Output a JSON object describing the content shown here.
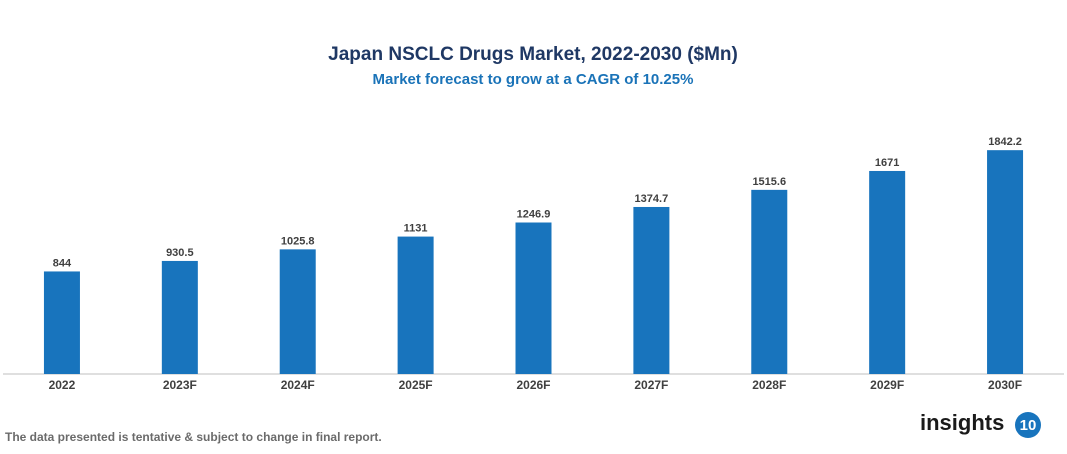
{
  "chart_data": {
    "type": "bar",
    "title": "Japan NSCLC Drugs Market, 2022-2030 ($Mn)",
    "subtitle": "Market forecast to grow at a CAGR of 10.25%",
    "categories": [
      "2022",
      "2023F",
      "2024F",
      "2025F",
      "2026F",
      "2027F",
      "2028F",
      "2029F",
      "2030F"
    ],
    "values": [
      844,
      930.5,
      1025.8,
      1131,
      1246.9,
      1374.7,
      1515.6,
      1671,
      1842.2
    ],
    "color": "#1874bd",
    "ylim": [
      0,
      2000
    ]
  },
  "footnote": "The data presented is tentative & subject to change in final report.",
  "logo": {
    "text": "insights",
    "badge": "10"
  }
}
